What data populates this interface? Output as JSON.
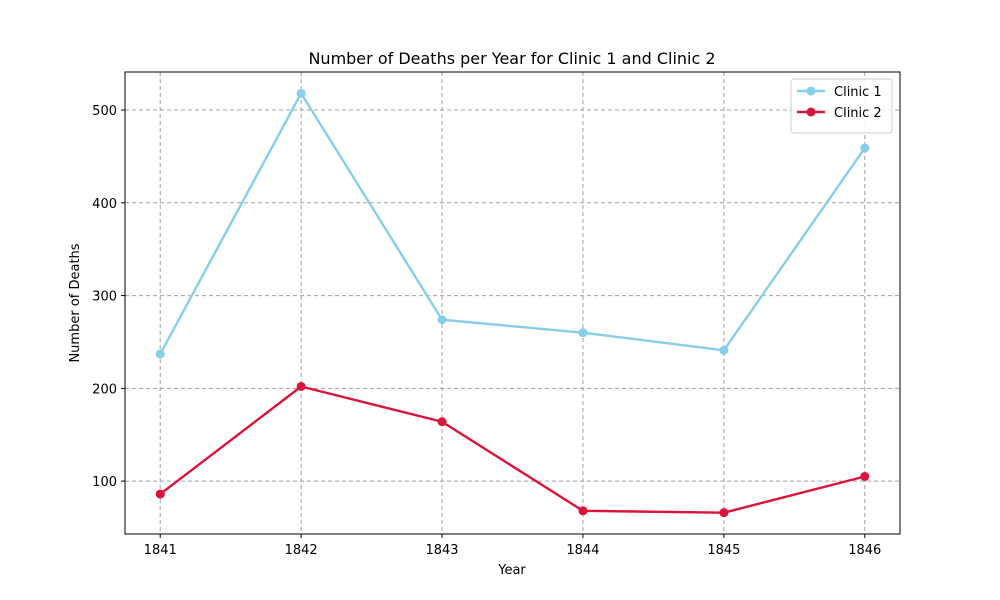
{
  "chart_data": {
    "type": "line",
    "title": "Number of Deaths per Year for Clinic 1 and Clinic 2",
    "xlabel": "Year",
    "ylabel": "Number of Deaths",
    "x": [
      "1841",
      "1842",
      "1843",
      "1844",
      "1845",
      "1846"
    ],
    "xlim": [
      1840.75,
      1846.25
    ],
    "ylim": [
      43,
      541
    ],
    "yticks": [
      100,
      200,
      300,
      400,
      500
    ],
    "grid": true,
    "grid_style": "dashed",
    "legend_position": "top-right",
    "series": [
      {
        "name": "Clinic 1",
        "color": "#87ceeb",
        "values": [
          237,
          518,
          274,
          260,
          241,
          459
        ]
      },
      {
        "name": "Clinic 2",
        "color": "#dc143c",
        "values": [
          86,
          202,
          164,
          68,
          66,
          105
        ]
      }
    ]
  }
}
